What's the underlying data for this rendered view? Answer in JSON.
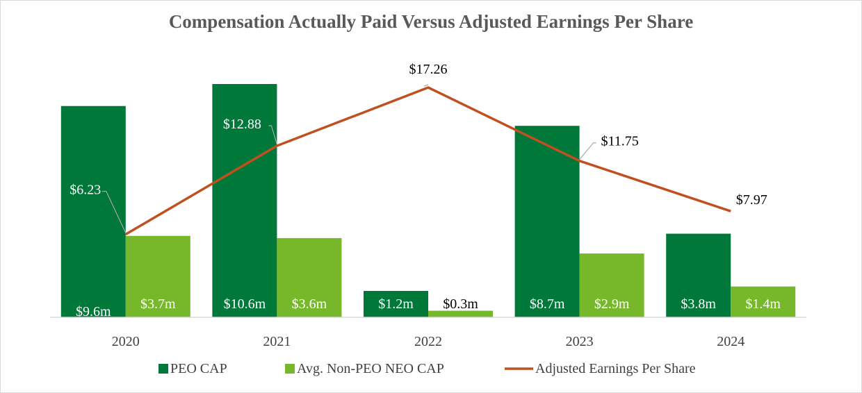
{
  "chart_data": {
    "type": "bar",
    "title": "Compensation Actually Paid Versus Adjusted Earnings Per Share",
    "categories": [
      "2020",
      "2021",
      "2022",
      "2023",
      "2024"
    ],
    "series": [
      {
        "name": "PEO CAP",
        "kind": "bar",
        "color": "#00783a",
        "values": [
          9.6,
          10.6,
          1.2,
          8.7,
          3.8
        ],
        "labels": [
          "$9.6m",
          "$10.6m",
          "$1.2m",
          "$8.7m",
          "$3.8m"
        ]
      },
      {
        "name": "Avg. Non-PEO NEO CAP",
        "kind": "bar",
        "color": "#76b82a",
        "values": [
          3.7,
          3.6,
          0.3,
          2.9,
          1.4
        ],
        "labels": [
          "$3.7m",
          "$3.6m",
          "$0.3m",
          "$2.9m",
          "$1.4m"
        ]
      },
      {
        "name": "Adjusted Earnings Per Share",
        "kind": "line",
        "color": "#c0501f",
        "values": [
          6.23,
          12.88,
          17.26,
          11.75,
          7.97
        ],
        "labels": [
          "$6.23",
          "$12.88",
          "$17.26",
          "$11.75",
          "$7.97"
        ]
      }
    ],
    "bar_axis_max": 10.6,
    "line_axis_range": [
      0,
      17.26
    ],
    "legend": "bottom",
    "grid": false
  }
}
